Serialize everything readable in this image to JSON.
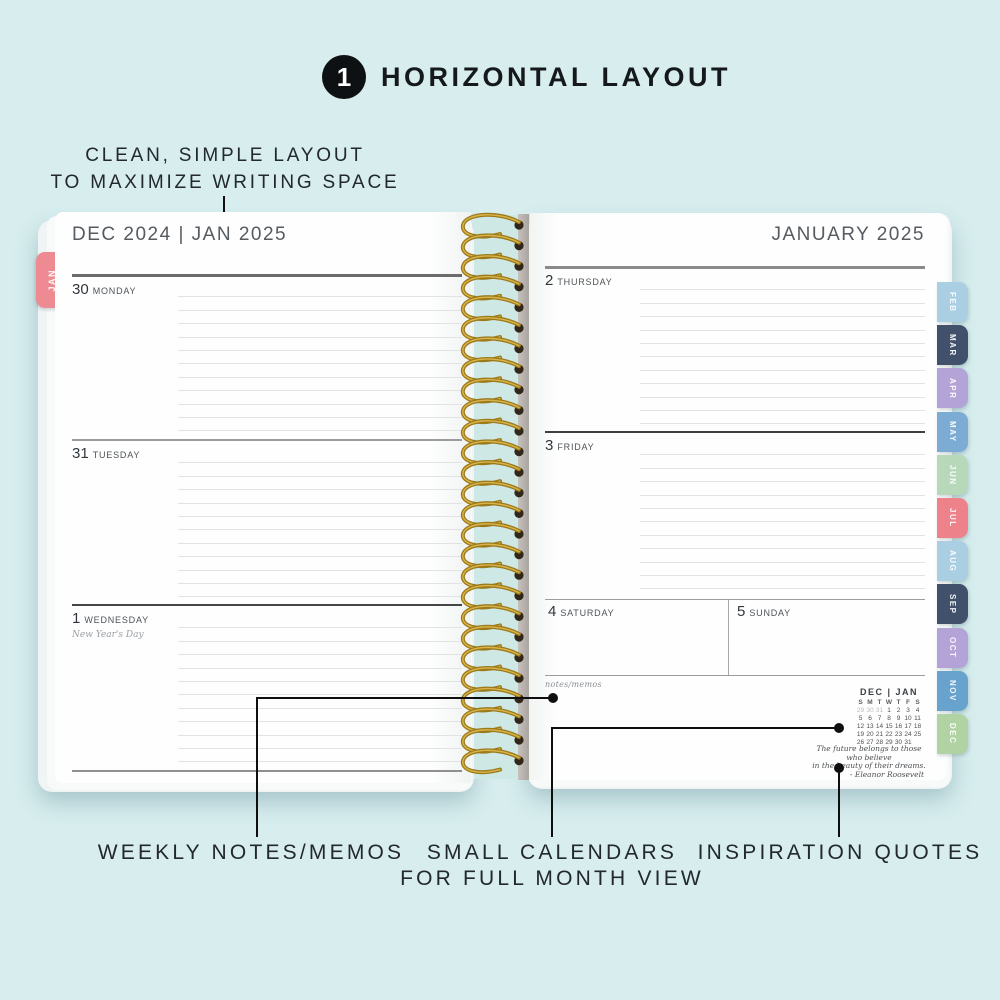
{
  "header": {
    "step_number": "1",
    "title": "HORIZONTAL LAYOUT"
  },
  "annotations": {
    "top_line1": "CLEAN, SIMPLE LAYOUT",
    "top_line2": "TO MAXIMIZE WRITING SPACE",
    "bottom_left": "WEEKLY NOTES/MEMOS",
    "bottom_center_line1": "SMALL CALENDARS",
    "bottom_center_line2": "FOR FULL MONTH VIEW",
    "bottom_right": "INSPIRATION QUOTES"
  },
  "planner": {
    "left_page": {
      "header": "DEC 2024 | JAN 2025",
      "tab": {
        "label": "JAN",
        "color": "#ed8a92"
      },
      "days": [
        {
          "number": "30",
          "name": "MONDAY",
          "note": ""
        },
        {
          "number": "31",
          "name": "TUESDAY",
          "note": ""
        },
        {
          "number": "1",
          "name": "WEDNESDAY",
          "note": "New Year's Day"
        }
      ]
    },
    "right_page": {
      "header": "JANUARY 2025",
      "days": [
        {
          "number": "2",
          "name": "THURSDAY"
        },
        {
          "number": "3",
          "name": "FRIDAY"
        },
        {
          "number": "4",
          "name": "SATURDAY"
        },
        {
          "number": "5",
          "name": "SUNDAY"
        }
      ],
      "notes_label": "notes/memos",
      "mini_calendar": {
        "title": "DEC | JAN",
        "day_headers": [
          "S",
          "M",
          "T",
          "W",
          "T",
          "F",
          "S"
        ],
        "weeks": [
          [
            "29",
            "30",
            "31",
            "1",
            "2",
            "3",
            "4"
          ],
          [
            "5",
            "6",
            "7",
            "8",
            "9",
            "10",
            "11"
          ],
          [
            "12",
            "13",
            "14",
            "15",
            "16",
            "17",
            "18"
          ],
          [
            "19",
            "20",
            "21",
            "22",
            "23",
            "24",
            "25"
          ],
          [
            "26",
            "27",
            "28",
            "29",
            "30",
            "31",
            ""
          ]
        ],
        "muted_cells": [
          [
            0,
            0
          ],
          [
            0,
            1
          ],
          [
            0,
            2
          ]
        ]
      },
      "quote": {
        "line1": "The future belongs to those who believe",
        "line2": "in the beauty of their dreams.",
        "line3": "- Eleanor Roosevelt"
      }
    },
    "month_tabs": [
      {
        "label": "FEB",
        "color": "#aacfe2"
      },
      {
        "label": "MAR",
        "color": "#41506b"
      },
      {
        "label": "APR",
        "color": "#b3a3d6"
      },
      {
        "label": "MAY",
        "color": "#7cabd4"
      },
      {
        "label": "JUN",
        "color": "#b7d9ba"
      },
      {
        "label": "JUL",
        "color": "#ee828a"
      },
      {
        "label": "AUG",
        "color": "#aacfe2"
      },
      {
        "label": "SEP",
        "color": "#41506b"
      },
      {
        "label": "OCT",
        "color": "#b3a3d6"
      },
      {
        "label": "NOV",
        "color": "#68a3cd"
      },
      {
        "label": "DEC",
        "color": "#b1d3a3"
      }
    ],
    "colors": {
      "background": "#d7edee",
      "spiral_gold": "#9c7a1a",
      "spiral_backing": "#cde8e5"
    }
  }
}
